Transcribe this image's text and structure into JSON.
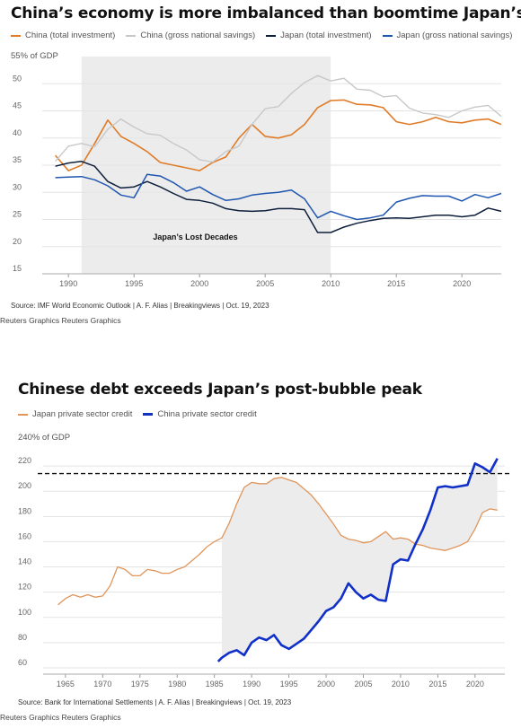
{
  "chart_data": [
    {
      "type": "line",
      "title": "China’s economy is more imbalanced than boomtime Japan’s",
      "unit_label": "55% of GDP",
      "ylim": [
        15,
        55
      ],
      "yticks": [
        15,
        20,
        25,
        30,
        35,
        40,
        45,
        50
      ],
      "xlim": [
        1988,
        2023
      ],
      "xticks": [
        1990,
        1995,
        2000,
        2005,
        2010,
        2015,
        2020
      ],
      "grid": true,
      "shaded_region": {
        "x": [
          1991,
          2010
        ],
        "label": "Japan’s Lost Decades"
      },
      "source": "Source: IMF World Economic Outlook | A. F. Alias | Breakingviews | Oct. 19, 2023",
      "credit": "Reuters Graphics Reuters Graphics",
      "series": [
        {
          "name": "China (total investment)",
          "color": "#e07b28",
          "x": [
            1989,
            1990,
            1991,
            1992,
            1993,
            1994,
            1995,
            1996,
            1997,
            1998,
            1999,
            2000,
            2001,
            2002,
            2003,
            2004,
            2005,
            2006,
            2007,
            2008,
            2009,
            2010,
            2011,
            2012,
            2013,
            2014,
            2015,
            2016,
            2017,
            2018,
            2019,
            2020,
            2021,
            2022,
            2023
          ],
          "y": [
            36.8,
            34.0,
            35.0,
            39.0,
            43.3,
            40.3,
            39.0,
            37.5,
            35.5,
            35.0,
            34.5,
            34.0,
            35.5,
            36.5,
            40.0,
            42.5,
            40.3,
            40.0,
            40.6,
            42.5,
            45.6,
            46.9,
            47.0,
            46.2,
            46.1,
            45.6,
            43.0,
            42.5,
            43.0,
            43.8,
            43.0,
            42.8,
            43.3,
            43.5,
            42.5
          ]
        },
        {
          "name": "China (gross national savings)",
          "color": "#c8c8c8",
          "x": [
            1989,
            1990,
            1991,
            1992,
            1993,
            1994,
            1995,
            1996,
            1997,
            1998,
            1999,
            2000,
            2001,
            2002,
            2003,
            2004,
            2005,
            2006,
            2007,
            2008,
            2009,
            2010,
            2011,
            2012,
            2013,
            2014,
            2015,
            2016,
            2017,
            2018,
            2019,
            2020,
            2021,
            2022,
            2023
          ],
          "y": [
            35.7,
            38.5,
            39.0,
            38.4,
            41.6,
            43.5,
            42.0,
            40.8,
            40.5,
            39.0,
            37.8,
            36.0,
            35.6,
            37.5,
            38.5,
            42.5,
            45.4,
            45.8,
            48.2,
            50.2,
            51.5,
            50.5,
            51.0,
            49.0,
            48.8,
            47.6,
            47.8,
            45.5,
            44.6,
            44.3,
            43.8,
            45.0,
            45.7,
            46.0,
            44.0
          ]
        },
        {
          "name": "Japan (total investment)",
          "color": "#0d1f3c",
          "x": [
            1989,
            1990,
            1991,
            1992,
            1993,
            1994,
            1995,
            1996,
            1997,
            1998,
            1999,
            2000,
            2001,
            2002,
            2003,
            2004,
            2005,
            2006,
            2007,
            2008,
            2009,
            2010,
            2011,
            2012,
            2013,
            2014,
            2015,
            2016,
            2017,
            2018,
            2019,
            2020,
            2021,
            2022,
            2023
          ],
          "y": [
            34.8,
            35.4,
            35.7,
            34.8,
            32.0,
            30.8,
            31.0,
            32.0,
            31.0,
            29.8,
            28.7,
            28.5,
            28.0,
            27.0,
            26.6,
            26.5,
            26.6,
            27.0,
            27.0,
            26.8,
            22.6,
            22.6,
            23.6,
            24.3,
            24.8,
            25.2,
            25.3,
            25.2,
            25.5,
            25.8,
            25.8,
            25.5,
            25.8,
            27.1,
            26.5
          ]
        },
        {
          "name": "Japan (gross national savings)",
          "color": "#1f56b0",
          "x": [
            1989,
            1990,
            1991,
            1992,
            1993,
            1994,
            1995,
            1996,
            1997,
            1998,
            1999,
            2000,
            2001,
            2002,
            2003,
            2004,
            2005,
            2006,
            2007,
            2008,
            2009,
            2010,
            2011,
            2012,
            2013,
            2014,
            2015,
            2016,
            2017,
            2018,
            2019,
            2020,
            2021,
            2022,
            2023
          ],
          "y": [
            32.7,
            32.8,
            32.9,
            32.3,
            31.2,
            29.5,
            29.0,
            33.3,
            33.0,
            31.8,
            30.2,
            31.0,
            29.6,
            28.5,
            28.8,
            29.5,
            29.8,
            30.0,
            30.4,
            28.8,
            25.3,
            26.5,
            25.7,
            25.0,
            25.3,
            25.8,
            28.2,
            28.9,
            29.4,
            29.3,
            29.3,
            28.4,
            29.6,
            29.0,
            29.8
          ]
        }
      ]
    },
    {
      "type": "line",
      "title": "Chinese debt exceeds Japan’s post-bubble peak",
      "unit_label": "240% of GDP",
      "ylim": [
        55,
        240
      ],
      "yticks": [
        60,
        80,
        100,
        120,
        140,
        160,
        180,
        200,
        220
      ],
      "xlim": [
        1962,
        2024
      ],
      "xticks": [
        1965,
        1970,
        1975,
        1980,
        1985,
        1990,
        1995,
        2000,
        2005,
        2010,
        2015,
        2020
      ],
      "grid": true,
      "reference_line": 214,
      "shaded_region": {
        "x": [
          1986,
          2023
        ]
      },
      "source": "Source: Bank for International Settlements | A. F. Alias | Breakingviews | Oct. 19, 2023",
      "credit": "Reuters Graphics Reuters Graphics",
      "series": [
        {
          "name": "Japan private sector credit",
          "color": "#e0955a",
          "x": [
            1964,
            1965,
            1966,
            1967,
            1968,
            1969,
            1970,
            1971,
            1972,
            1973,
            1974,
            1975,
            1976,
            1977,
            1978,
            1979,
            1980,
            1981,
            1982,
            1983,
            1984,
            1985,
            1986,
            1987,
            1988,
            1989,
            1990,
            1991,
            1992,
            1993,
            1994,
            1995,
            1996,
            1997,
            1998,
            1999,
            2000,
            2001,
            2002,
            2003,
            2004,
            2005,
            2006,
            2007,
            2008,
            2009,
            2010,
            2011,
            2012,
            2013,
            2014,
            2015,
            2016,
            2017,
            2018,
            2019,
            2020,
            2021,
            2022,
            2023
          ],
          "y": [
            110,
            115,
            118,
            116,
            118,
            116,
            117,
            125,
            140,
            138,
            133,
            133,
            138,
            137,
            135,
            135,
            138,
            140,
            145,
            150,
            156,
            160,
            163,
            175,
            190,
            203,
            207,
            206,
            206,
            210,
            211,
            209,
            207,
            202,
            197,
            190,
            182,
            174,
            165,
            162,
            161,
            159,
            160,
            164,
            168,
            162,
            163,
            162,
            158,
            157,
            155,
            154,
            153,
            155,
            157,
            160,
            170,
            183,
            186,
            185
          ]
        },
        {
          "name": "China private sector credit",
          "color": "#1030c8",
          "x": [
            1985.5,
            1986,
            1987,
            1988,
            1989,
            1990,
            1991,
            1992,
            1993,
            1994,
            1995,
            1996,
            1997,
            1998,
            1999,
            2000,
            2001,
            2002,
            2003,
            2004,
            2005,
            2006,
            2007,
            2008,
            2009,
            2010,
            2011,
            2012,
            2013,
            2014,
            2015,
            2016,
            2017,
            2018,
            2019,
            2020,
            2021,
            2022,
            2023
          ],
          "y": [
            65,
            68,
            72,
            74,
            70,
            80,
            84,
            82,
            86,
            78,
            75,
            79,
            83,
            90,
            97,
            105,
            108,
            115,
            127,
            120,
            115,
            118,
            114,
            113,
            142,
            146,
            145,
            158,
            170,
            185,
            203,
            204,
            203,
            204,
            205,
            222,
            219,
            215,
            226
          ]
        }
      ]
    }
  ]
}
